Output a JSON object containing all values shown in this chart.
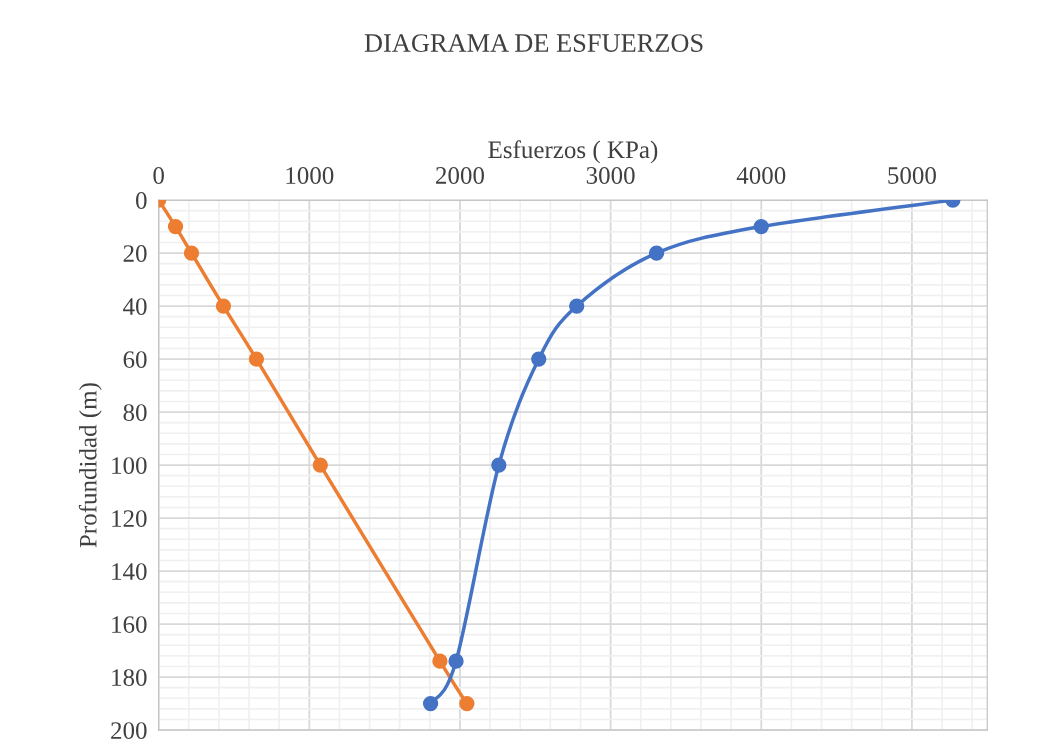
{
  "chart_data": {
    "type": "line",
    "title": "DIAGRAMA DE ESFUERZOS",
    "xlabel": "Esfuerzos ( KPa)",
    "ylabel": "Profundidad (m)",
    "series": [
      {
        "color": "#ed7d31",
        "x": [
          0,
          112,
          218,
          430,
          649,
          1073,
          1867,
          2046
        ],
        "values": [
          0,
          10,
          20,
          40,
          60,
          100,
          174,
          190
        ]
      },
      {
        "color": "#4472c4",
        "x": [
          5272,
          4000,
          3305,
          2775,
          2523,
          2258,
          1974,
          1805
        ],
        "values": [
          0,
          10,
          20,
          40,
          60,
          100,
          174,
          190
        ]
      }
    ],
    "xlim": [
      0,
      5500
    ],
    "xticks": [
      0,
      1000,
      2000,
      3000,
      4000,
      5000
    ],
    "ylim": [
      200,
      0
    ],
    "yticks": [
      0,
      20,
      40,
      60,
      80,
      100,
      120,
      140,
      160,
      180,
      200
    ],
    "grid": true,
    "marker": "circle",
    "line_style": "solid"
  }
}
